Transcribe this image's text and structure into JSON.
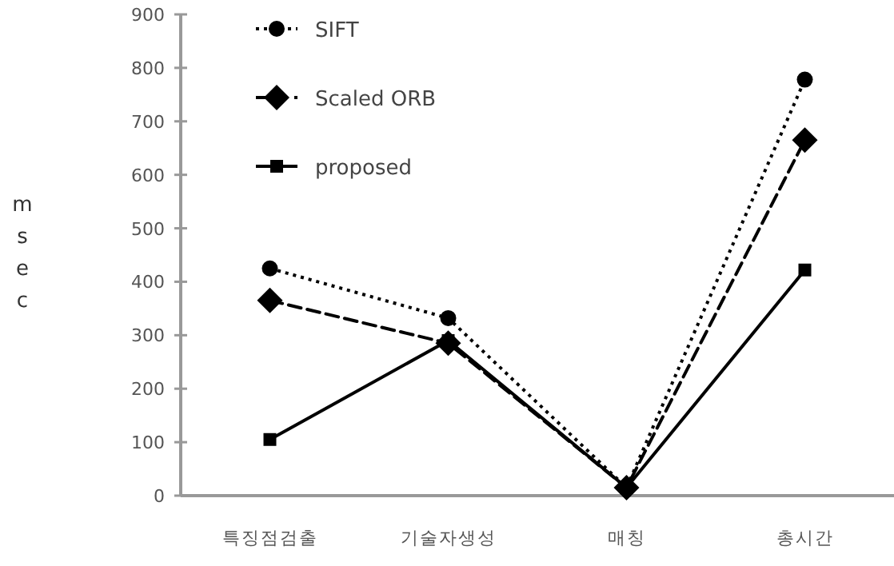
{
  "chart_data": {
    "type": "line",
    "ylabel": "msec",
    "categories": [
      "특징점검출",
      "기술자생성",
      "매칭",
      "총시간"
    ],
    "series": [
      {
        "name": "SIFT",
        "color": "#000000",
        "marker": "circle",
        "line_style": "dotted",
        "values": [
          425,
          332,
          15,
          778
        ]
      },
      {
        "name": "Scaled ORB",
        "color": "#000000",
        "marker": "diamond",
        "line_style": "dashed",
        "values": [
          365,
          285,
          15,
          665
        ]
      },
      {
        "name": "proposed",
        "color": "#000000",
        "marker": "square",
        "line_style": "solid",
        "values": [
          105,
          290,
          15,
          422
        ]
      }
    ],
    "ylim": [
      0,
      900
    ],
    "yticks": [
      0,
      100,
      200,
      300,
      400,
      500,
      600,
      700,
      800,
      900
    ],
    "legend": "top left"
  }
}
